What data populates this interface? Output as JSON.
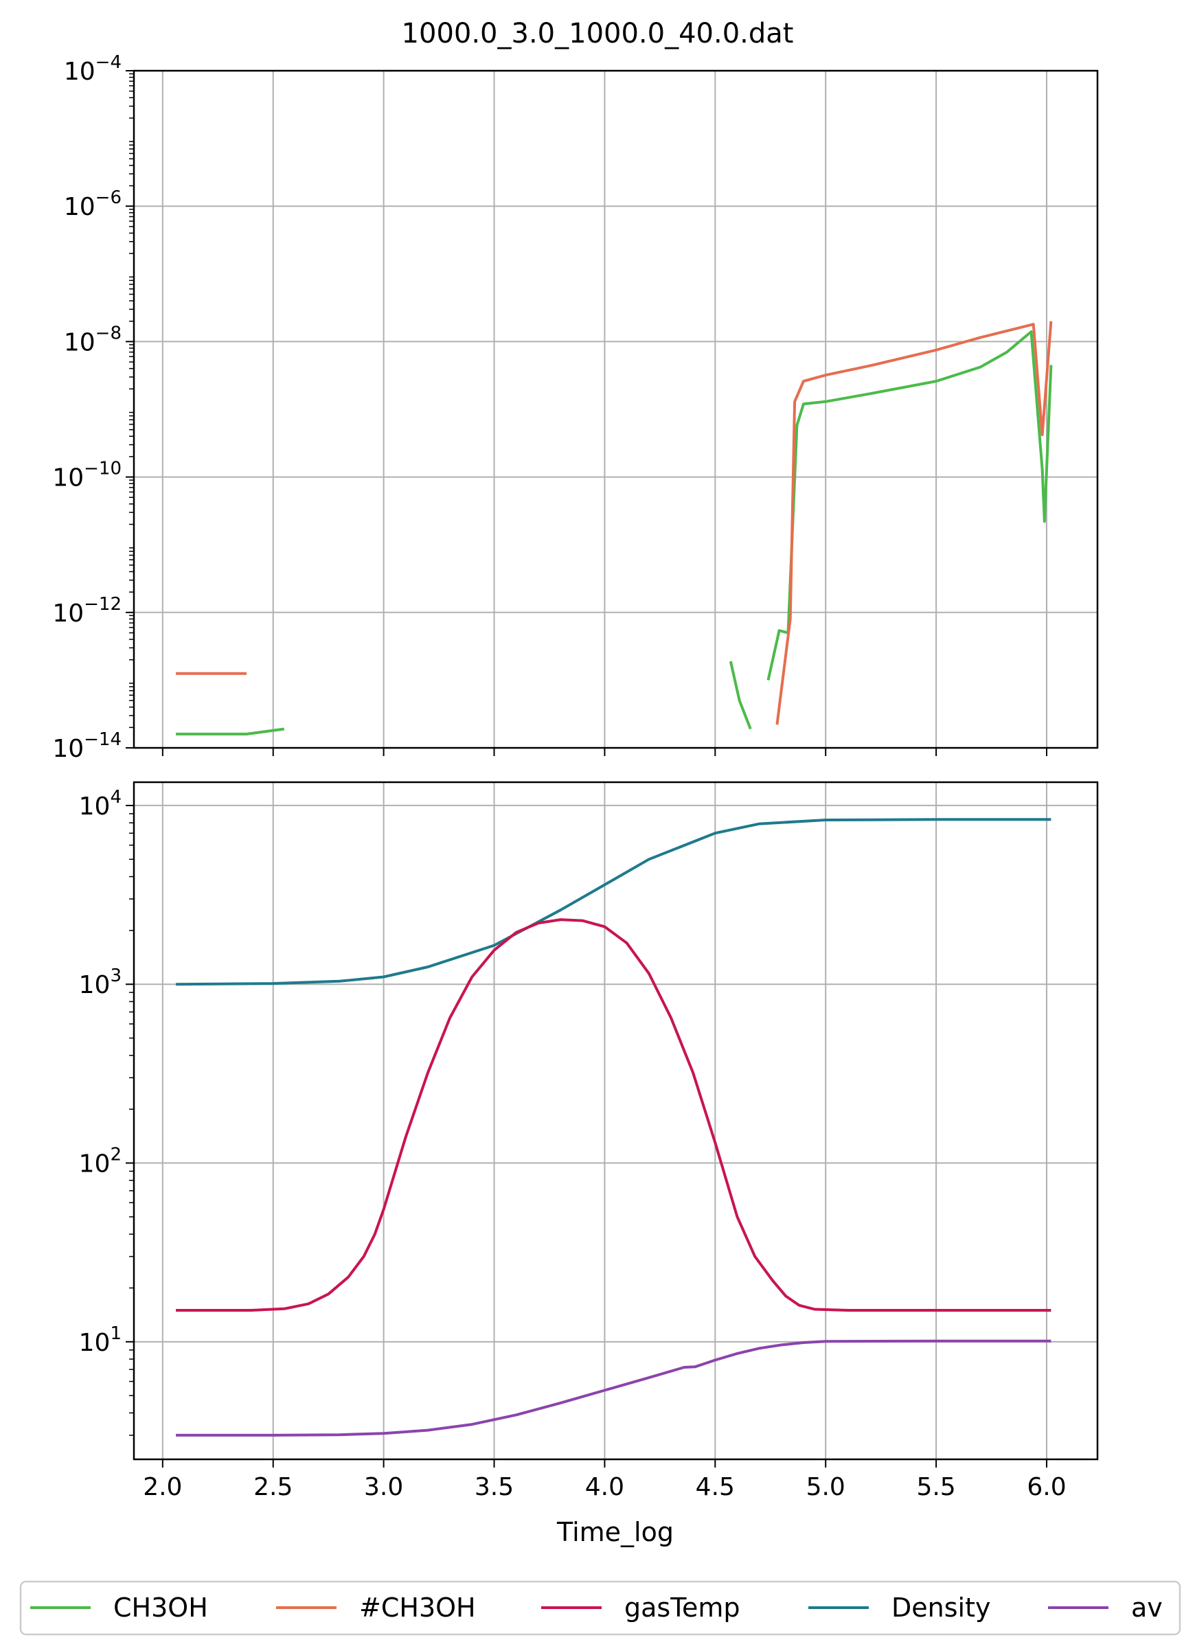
{
  "title": "1000.0_3.0_1000.0_40.0.dat",
  "colors": {
    "CH3OH": "#4cba4a",
    "#CH3OH": "#e56e4e",
    "gasTemp": "#c8154f",
    "Density": "#1f7a8c",
    "av": "#8b44ac"
  },
  "legend": {
    "placement": "bottom",
    "entries": [
      "CH3OH",
      "#CH3OH",
      "gasTemp",
      "Density",
      "av"
    ]
  },
  "chart_data": [
    {
      "type": "line",
      "panel": "top",
      "title": "1000.0_3.0_1000.0_40.0.dat",
      "xlabel": "",
      "ylabel": "",
      "xlim": [
        1.87,
        6.23
      ],
      "ylim": [
        1e-14,
        0.0001
      ],
      "yscale": "log",
      "grid": true,
      "xticks": [
        2.0,
        2.5,
        3.0,
        3.5,
        4.0,
        4.5,
        5.0,
        5.5,
        6.0
      ],
      "yticks": [
        {
          "value": 1e-14,
          "base": "10",
          "exp": "−14"
        },
        {
          "value": 1e-12,
          "base": "10",
          "exp": "−12"
        },
        {
          "value": 1e-10,
          "base": "10",
          "exp": "−10"
        },
        {
          "value": 1e-08,
          "base": "10",
          "exp": "−8"
        },
        {
          "value": 1e-06,
          "base": "10",
          "exp": "−6"
        },
        {
          "value": 0.0001,
          "base": "10",
          "exp": "−4"
        }
      ],
      "series": [
        {
          "name": "CH3OH",
          "segments": [
            [
              [
                2.06,
                1.6e-14
              ],
              [
                2.38,
                1.6e-14
              ],
              [
                2.55,
                1.9e-14
              ]
            ],
            [
              [
                4.57,
                1.9e-13
              ],
              [
                4.61,
                5e-14
              ],
              [
                4.66,
                1.9e-14
              ]
            ],
            [
              [
                4.74,
                1e-13
              ],
              [
                4.79,
                5.4e-13
              ],
              [
                4.83,
                5e-13
              ],
              [
                4.87,
                5.8e-10
              ],
              [
                4.9,
                1.2e-09
              ],
              [
                5.0,
                1.3e-09
              ],
              [
                5.2,
                1.7e-09
              ],
              [
                5.5,
                2.6e-09
              ],
              [
                5.7,
                4.2e-09
              ],
              [
                5.82,
                7e-09
              ],
              [
                5.93,
                1.4e-08
              ],
              [
                5.98,
                1.3e-10
              ],
              [
                5.99,
                2.2e-11
              ],
              [
                6.02,
                4.5e-09
              ]
            ]
          ]
        },
        {
          "name": "#CH3OH",
          "segments": [
            [
              [
                2.06,
                1.25e-13
              ],
              [
                2.38,
                1.25e-13
              ]
            ],
            [
              [
                4.78,
                2.2e-14
              ],
              [
                4.84,
                8e-13
              ],
              [
                4.86,
                1.3e-09
              ],
              [
                4.9,
                2.6e-09
              ],
              [
                5.0,
                3.2e-09
              ],
              [
                5.2,
                4.4e-09
              ],
              [
                5.5,
                7.5e-09
              ],
              [
                5.7,
                1.15e-08
              ],
              [
                5.94,
                1.8e-08
              ],
              [
                5.98,
                4.2e-10
              ],
              [
                6.02,
                2e-08
              ]
            ]
          ]
        }
      ]
    },
    {
      "type": "line",
      "panel": "bottom",
      "xlabel": "Time_log",
      "ylabel": "",
      "xlim": [
        1.87,
        6.23
      ],
      "ylim": [
        2.2,
        13500
      ],
      "yscale": "log",
      "grid": true,
      "xticks": [
        2.0,
        2.5,
        3.0,
        3.5,
        4.0,
        4.5,
        5.0,
        5.5,
        6.0
      ],
      "yticks": [
        {
          "value": 10,
          "base": "10",
          "exp": "1"
        },
        {
          "value": 100,
          "base": "10",
          "exp": "2"
        },
        {
          "value": 1000,
          "base": "10",
          "exp": "3"
        },
        {
          "value": 10000,
          "base": "10",
          "exp": "4"
        }
      ],
      "series": [
        {
          "name": "Density",
          "points": [
            [
              2.06,
              1000
            ],
            [
              2.5,
              1010
            ],
            [
              2.8,
              1040
            ],
            [
              3.0,
              1100
            ],
            [
              3.2,
              1250
            ],
            [
              3.5,
              1650
            ],
            [
              3.8,
              2600
            ],
            [
              4.0,
              3600
            ],
            [
              4.2,
              5000
            ],
            [
              4.5,
              7000
            ],
            [
              4.7,
              7900
            ],
            [
              5.0,
              8300
            ],
            [
              5.5,
              8350
            ],
            [
              6.02,
              8350
            ]
          ]
        },
        {
          "name": "gasTemp",
          "points": [
            [
              2.06,
              15
            ],
            [
              2.4,
              15
            ],
            [
              2.55,
              15.3
            ],
            [
              2.66,
              16.3
            ],
            [
              2.75,
              18.5
            ],
            [
              2.84,
              23
            ],
            [
              2.91,
              30
            ],
            [
              2.96,
              40
            ],
            [
              3.0,
              55
            ],
            [
              3.1,
              140
            ],
            [
              3.2,
              320
            ],
            [
              3.3,
              650
            ],
            [
              3.4,
              1100
            ],
            [
              3.5,
              1550
            ],
            [
              3.6,
              1950
            ],
            [
              3.7,
              2200
            ],
            [
              3.8,
              2300
            ],
            [
              3.9,
              2270
            ],
            [
              4.0,
              2100
            ],
            [
              4.1,
              1700
            ],
            [
              4.2,
              1150
            ],
            [
              4.3,
              650
            ],
            [
              4.4,
              320
            ],
            [
              4.5,
              130
            ],
            [
              4.6,
              50
            ],
            [
              4.68,
              30
            ],
            [
              4.76,
              22
            ],
            [
              4.82,
              18
            ],
            [
              4.88,
              16
            ],
            [
              4.95,
              15.2
            ],
            [
              5.1,
              15
            ],
            [
              6.02,
              15
            ]
          ]
        },
        {
          "name": "av",
          "points": [
            [
              2.06,
              3.0
            ],
            [
              2.5,
              3.0
            ],
            [
              2.8,
              3.02
            ],
            [
              3.0,
              3.07
            ],
            [
              3.2,
              3.2
            ],
            [
              3.4,
              3.45
            ],
            [
              3.6,
              3.9
            ],
            [
              3.8,
              4.55
            ],
            [
              4.0,
              5.35
            ],
            [
              4.2,
              6.3
            ],
            [
              4.36,
              7.2
            ],
            [
              4.41,
              7.25
            ],
            [
              4.5,
              7.9
            ],
            [
              4.6,
              8.6
            ],
            [
              4.7,
              9.2
            ],
            [
              4.8,
              9.6
            ],
            [
              4.9,
              9.9
            ],
            [
              5.0,
              10.05
            ],
            [
              5.5,
              10.1
            ],
            [
              6.02,
              10.1
            ]
          ]
        }
      ]
    }
  ]
}
